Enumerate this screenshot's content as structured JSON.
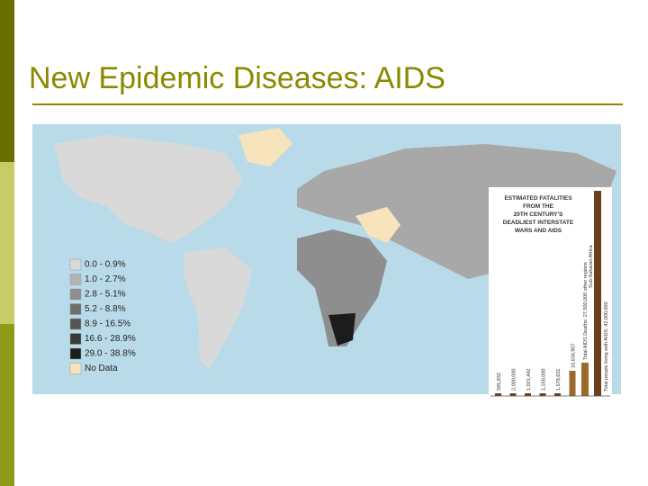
{
  "header": {
    "title": "New Epidemic Diseases: AIDS"
  },
  "legend": {
    "items": [
      {
        "label": "0.0 - 0.9%",
        "color": "#d9d9d9"
      },
      {
        "label": "1.0 - 2.7%",
        "color": "#b3b3b3"
      },
      {
        "label": "2.8 - 5.1%",
        "color": "#8e8e8e"
      },
      {
        "label": "5.2 - 8.8%",
        "color": "#6e6e6e"
      },
      {
        "label": "8.9 - 16.5%",
        "color": "#555555"
      },
      {
        "label": "16.6 - 28.9%",
        "color": "#383838"
      },
      {
        "label": "29.0 - 38.8%",
        "color": "#1c1c1c"
      },
      {
        "label": "No Data",
        "color": "#f7e4bd"
      }
    ]
  },
  "inset": {
    "title": [
      "ESTIMATED FATALITIES",
      "FROM THE",
      "20TH CENTURY'S",
      "DEADLIEST INTERSTATE",
      "WARS AND AIDS"
    ],
    "bar_labels": [
      "595,832",
      "2,000,000",
      "1,021,442",
      "1,250,000",
      "1,578,631",
      "16,634,907"
    ],
    "total_deaths": "Total AIDS Deaths: 27,500,000 other regions",
    "total_living": "Total people living with AIDS: 42,000,000",
    "region": "Sub-Saharan Africa"
  }
}
